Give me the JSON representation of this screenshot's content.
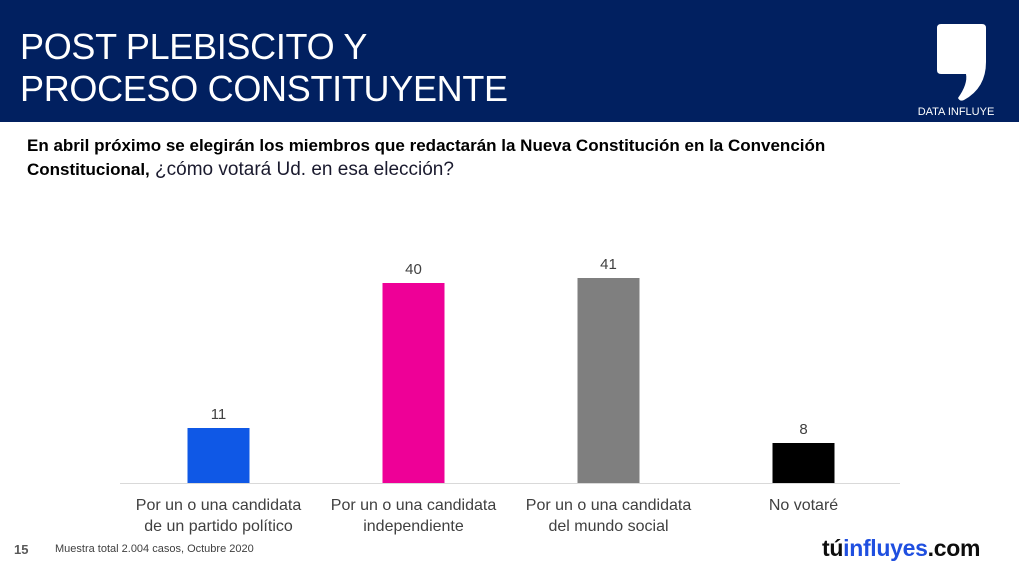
{
  "header": {
    "title_lines": [
      "POST PLEBISCITO Y",
      "PROCESO CONSTITUYENTE"
    ],
    "logo_label": "DATA INFLUYE",
    "logo_icon": "comma-quote-icon"
  },
  "question": {
    "bold_part": "En abril próximo se elegirán los miembros que redactarán la Nueva Constitución en la Convención Constitucional,",
    "regular_part": " ¿cómo votará Ud. en esa elección?"
  },
  "footer": {
    "page_number": "15",
    "note": "Muestra total 2.004 casos,  Octubre 2020",
    "brand_part1": "tú",
    "brand_part2": "influyes",
    "brand_part3": ".com"
  },
  "colors": {
    "header_bg": "#012060",
    "brand_blue": "#1f4fe0"
  },
  "chart_data": {
    "type": "bar",
    "title": "En abril próximo se elegirán los miembros que redactarán la Nueva Constitución en la Convención Constitucional, ¿cómo votará Ud. en esa elección?",
    "xlabel": "",
    "ylabel": "",
    "grid": false,
    "legend": "none",
    "ylim": [
      0,
      41
    ],
    "categories": [
      [
        "Por un o una candidata",
        "de un partido político"
      ],
      [
        "Por un o una candidata",
        "independiente"
      ],
      [
        "Por un o una candidata",
        "del mundo social"
      ],
      [
        "No votaré"
      ]
    ],
    "values": [
      11,
      40,
      41,
      8
    ],
    "data_labels": [
      "11",
      "40",
      "41",
      "8"
    ],
    "bar_colors": [
      "#0f58e6",
      "#ee0097",
      "#7f7f7f",
      "#000000"
    ]
  }
}
